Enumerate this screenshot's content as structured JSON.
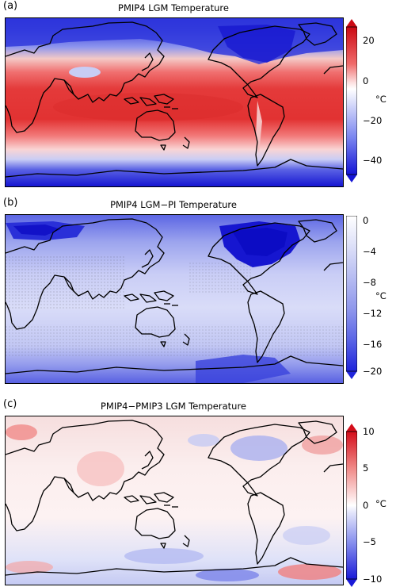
{
  "panels": [
    {
      "label": "(a)",
      "title": "PMIP4 LGM Temperature",
      "colorbar": {
        "ticks": [
          "20",
          "0",
          "−20",
          "−40"
        ],
        "unit": "°C",
        "range": [
          -48,
          28
        ],
        "extend": "both",
        "colors": [
          "#cc0a14",
          "#f06a6a",
          "#fde2e2",
          "#ffffff",
          "#dfe2fb",
          "#7a85f0",
          "#1414d6"
        ]
      }
    },
    {
      "label": "(b)",
      "title": "PMIP4 LGM−PI Temperature",
      "colorbar": {
        "ticks": [
          "0",
          "−4",
          "−8",
          "−12",
          "−16",
          "−20"
        ],
        "unit": "°C",
        "range": [
          -20,
          0
        ],
        "extend": "min",
        "colors": [
          "#ffffff",
          "#dcdff8",
          "#b6bcf2",
          "#8f97ec",
          "#5a64e6",
          "#1f24db"
        ]
      }
    },
    {
      "label": "(c)",
      "title": "PMIP4−PMIP3 LGM Temperature",
      "colorbar": {
        "ticks": [
          "10",
          "5",
          "0",
          "−5",
          "−10"
        ],
        "unit": "°C",
        "range": [
          -10,
          10
        ],
        "extend": "both",
        "colors": [
          "#d40d1a",
          "#f08a88",
          "#fde6e6",
          "#ffffff",
          "#e3e5fb",
          "#8890ee",
          "#1a1ad8"
        ]
      }
    }
  ]
}
